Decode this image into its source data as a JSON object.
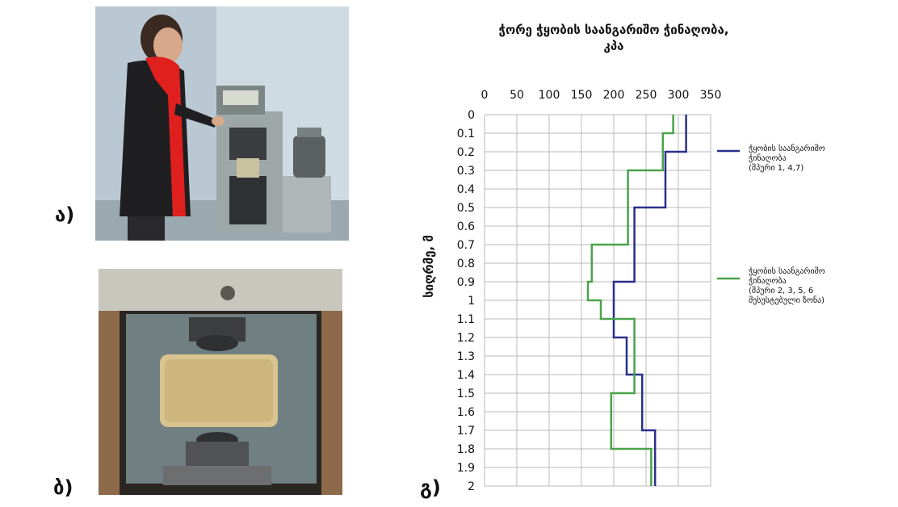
{
  "panel_labels": {
    "a": "ა)",
    "b": "ბ)",
    "c": "გ)"
  },
  "colors": {
    "series1": "#2b2f8a",
    "series2": "#4aa24a",
    "grid": "#b8b8b8",
    "text": "#111111"
  },
  "chart_data": {
    "type": "line",
    "title_line1": "ჭორე ჭყობის საანგარიშო ჭინაღობა,",
    "title_line2": "კპა",
    "ylabel": "სიღრმე, მ",
    "xlabel": "",
    "xlim": [
      0,
      350
    ],
    "ylim": [
      0,
      2
    ],
    "y_inverted": true,
    "x_axis_position": "top",
    "grid": true,
    "x_ticks": [
      0,
      50,
      100,
      150,
      200,
      250,
      300,
      350
    ],
    "y_ticks": [
      "0",
      "0.1",
      "0.2",
      "0.3",
      "0.4",
      "0.5",
      "0.6",
      "0.7",
      "0.8",
      "0.9",
      "1",
      "1.1",
      "1.2",
      "1.3",
      "1.4",
      "1.5",
      "1.6",
      "1.7",
      "1.8",
      "1.9",
      "2"
    ],
    "series": [
      {
        "name": "ჭყობის საანგარიშო ჭინაღობა (შპური 1, 4,7)",
        "legend_lines": [
          "ჭყობის საანგარიშო",
          "ჭინაღობა",
          "(შპური 1, 4,7)"
        ],
        "points": [
          [
            312,
            0
          ],
          [
            312,
            0.2
          ],
          [
            280,
            0.2
          ],
          [
            280,
            0.5
          ],
          [
            232,
            0.5
          ],
          [
            232,
            0.9
          ],
          [
            200,
            0.9
          ],
          [
            200,
            1.2
          ],
          [
            220,
            1.2
          ],
          [
            220,
            1.4
          ],
          [
            244,
            1.4
          ],
          [
            244,
            1.7
          ],
          [
            264,
            1.7
          ],
          [
            264,
            2.0
          ]
        ]
      },
      {
        "name": "ჭყობის საანგარიშო ჭინაღობა (შპური 2, 3, 5, 6 შესუსტებული ზონა)",
        "legend_lines": [
          "ჭყობის საანგარიშო",
          "ჭინაღობა",
          "(შპური 2, 3, 5, 6",
          "შესუსტებული ზონა)"
        ],
        "points": [
          [
            292,
            0
          ],
          [
            292,
            0.1
          ],
          [
            276,
            0.1
          ],
          [
            276,
            0.3
          ],
          [
            222,
            0.3
          ],
          [
            222,
            0.7
          ],
          [
            166,
            0.7
          ],
          [
            166,
            0.9
          ],
          [
            160,
            0.9
          ],
          [
            160,
            1.0
          ],
          [
            180,
            1.0
          ],
          [
            180,
            1.1
          ],
          [
            232,
            1.1
          ],
          [
            232,
            1.5
          ],
          [
            196,
            1.5
          ],
          [
            196,
            1.8
          ],
          [
            258,
            1.8
          ],
          [
            258,
            2.0
          ]
        ]
      }
    ]
  }
}
